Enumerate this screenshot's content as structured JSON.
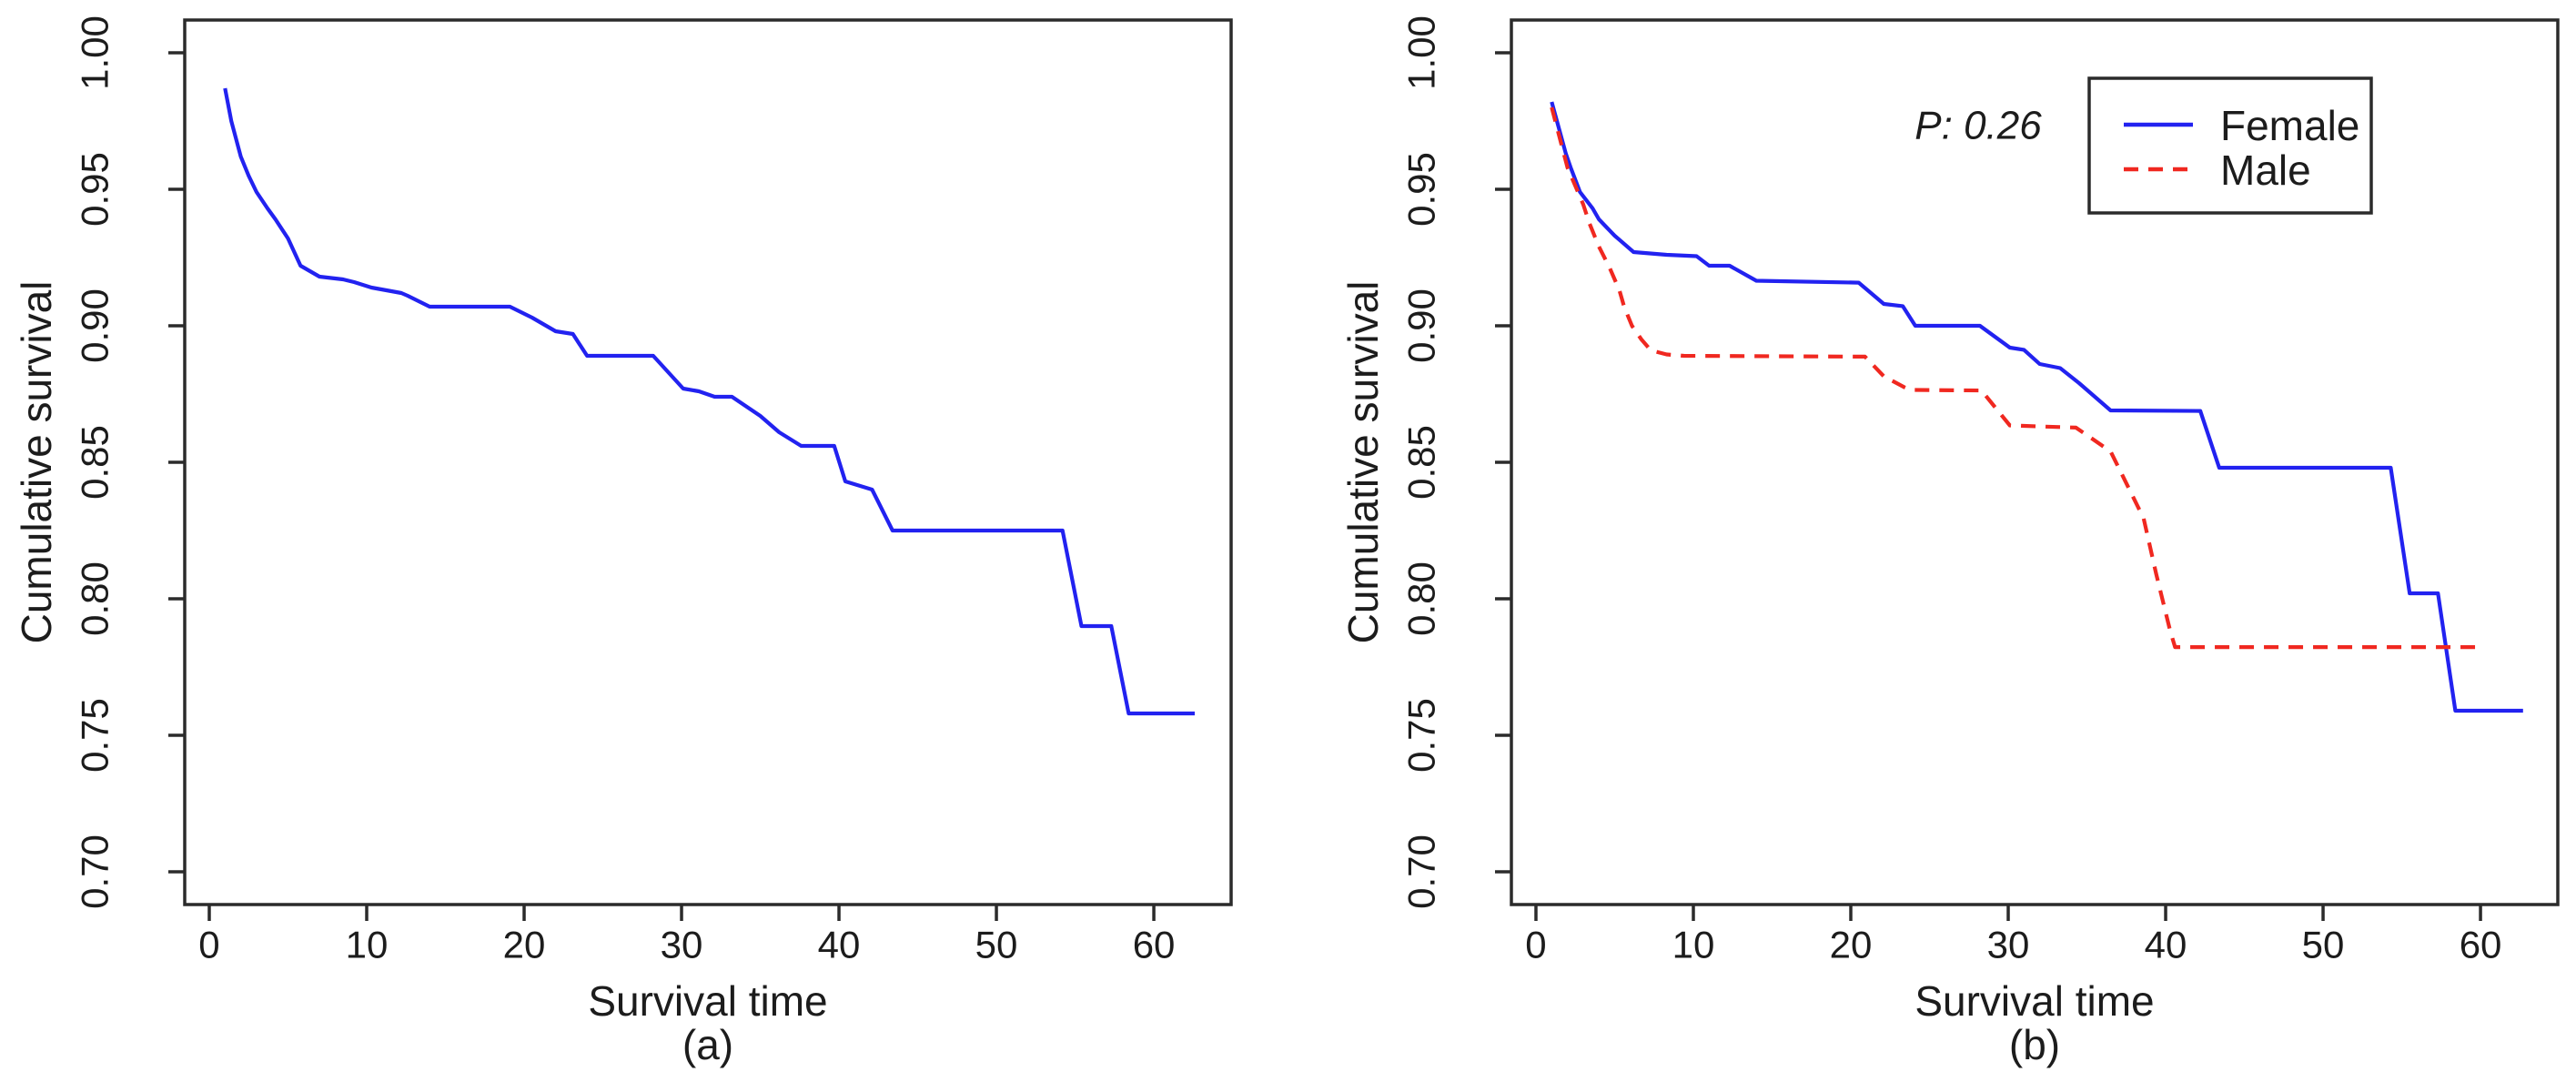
{
  "figure": {
    "background": "#ffffff",
    "axis_color": "#2b2b2b",
    "text_color": "#1c1c1c"
  },
  "chart_data": [
    {
      "type": "line",
      "panel": "a",
      "caption": "(a)",
      "xlabel": "Survival time",
      "ylabel": "Cumulative survival",
      "xlim": [
        -1.56,
        64.91
      ],
      "ylim": [
        0.688,
        1.012
      ],
      "grid": false,
      "xticks": {
        "values": [
          0,
          10,
          20,
          30,
          40,
          50,
          60
        ],
        "labels": [
          "0",
          "10",
          "20",
          "30",
          "40",
          "50",
          "60"
        ]
      },
      "yticks": {
        "values": [
          1.0,
          0.95,
          0.9,
          0.85,
          0.8,
          0.75,
          0.7
        ],
        "labels": [
          "1.00",
          "0.95",
          "0.90",
          "0.85",
          "0.80",
          "0.75",
          "0.70"
        ]
      },
      "series": [
        {
          "name": "",
          "color": "#2222f0",
          "style": "solid",
          "points": [
            [
              1,
              0.987
            ],
            [
              1.4,
              0.975
            ],
            [
              2,
              0.962
            ],
            [
              2.5,
              0.955
            ],
            [
              3,
              0.949
            ],
            [
              3.7,
              0.943
            ],
            [
              4.2,
              0.939
            ],
            [
              5,
              0.932
            ],
            [
              5.8,
              0.922
            ],
            [
              7,
              0.918
            ],
            [
              8.5,
              0.917
            ],
            [
              9.2,
              0.916
            ],
            [
              10.3,
              0.914
            ],
            [
              12.2,
              0.912
            ],
            [
              12.6,
              0.911
            ],
            [
              14,
              0.907
            ],
            [
              19.1,
              0.907
            ],
            [
              20.5,
              0.903
            ],
            [
              22,
              0.898
            ],
            [
              23.1,
              0.897
            ],
            [
              24,
              0.889
            ],
            [
              28.2,
              0.889
            ],
            [
              30.1,
              0.877
            ],
            [
              31.1,
              0.876
            ],
            [
              32.1,
              0.874
            ],
            [
              33.2,
              0.874
            ],
            [
              35,
              0.867
            ],
            [
              36.2,
              0.861
            ],
            [
              37.6,
              0.856
            ],
            [
              39.7,
              0.856
            ],
            [
              40.4,
              0.843
            ],
            [
              42.1,
              0.84
            ],
            [
              43.4,
              0.825
            ],
            [
              54.2,
              0.825
            ],
            [
              55.4,
              0.79
            ],
            [
              57.3,
              0.79
            ],
            [
              58.4,
              0.758
            ],
            [
              62.6,
              0.758
            ]
          ]
        }
      ]
    },
    {
      "type": "line",
      "panel": "b",
      "caption": "(b)",
      "xlabel": "Survival time",
      "ylabel": "Cumulative survival",
      "xlim": [
        -1.56,
        64.91
      ],
      "ylim": [
        0.688,
        1.012
      ],
      "grid": false,
      "annotation": "P: 0.26",
      "legend": {
        "position": "top-right-inside",
        "items": [
          "Female",
          "Male"
        ]
      },
      "xticks": {
        "values": [
          0,
          10,
          20,
          30,
          40,
          50,
          60
        ],
        "labels": [
          "0",
          "10",
          "20",
          "30",
          "40",
          "50",
          "60"
        ]
      },
      "yticks": {
        "values": [
          1.0,
          0.95,
          0.9,
          0.85,
          0.8,
          0.75,
          0.7
        ],
        "labels": [
          "1.00",
          "0.95",
          "0.90",
          "0.85",
          "0.80",
          "0.75",
          "0.70"
        ]
      },
      "series": [
        {
          "name": "Female",
          "color": "#2222f0",
          "style": "solid",
          "points": [
            [
              1,
              0.982
            ],
            [
              1.9,
              0.963
            ],
            [
              2.2,
              0.958
            ],
            [
              2.8,
              0.949
            ],
            [
              3.6,
              0.943
            ],
            [
              4,
              0.939
            ],
            [
              4.5,
              0.936
            ],
            [
              5,
              0.933
            ],
            [
              6.2,
              0.927
            ],
            [
              8.3,
              0.926
            ],
            [
              10.2,
              0.9255
            ],
            [
              11,
              0.922
            ],
            [
              12.3,
              0.922
            ],
            [
              14,
              0.9165
            ],
            [
              20.5,
              0.9158
            ],
            [
              22.1,
              0.908
            ],
            [
              23.3,
              0.9072
            ],
            [
              24.1,
              0.9
            ],
            [
              28.2,
              0.9
            ],
            [
              30.1,
              0.892
            ],
            [
              31,
              0.8912
            ],
            [
              32,
              0.886
            ],
            [
              33.3,
              0.8845
            ],
            [
              34.5,
              0.879
            ],
            [
              36.5,
              0.869
            ],
            [
              42.2,
              0.8688
            ],
            [
              43.4,
              0.848
            ],
            [
              54.3,
              0.848
            ],
            [
              55.5,
              0.802
            ],
            [
              57.3,
              0.802
            ],
            [
              58.4,
              0.759
            ],
            [
              62.7,
              0.759
            ]
          ]
        },
        {
          "name": "Male",
          "color": "#f02820",
          "style": "dashed",
          "points": [
            [
              1,
              0.98
            ],
            [
              2,
              0.958
            ],
            [
              3,
              0.9445
            ],
            [
              3.4,
              0.9375
            ],
            [
              4,
              0.929
            ],
            [
              4.7,
              0.921
            ],
            [
              5.3,
              0.913
            ],
            [
              5.6,
              0.907
            ],
            [
              6.1,
              0.9
            ],
            [
              6.7,
              0.895
            ],
            [
              7.3,
              0.891
            ],
            [
              8.3,
              0.8895
            ],
            [
              9.4,
              0.889
            ],
            [
              20.9,
              0.8887
            ],
            [
              22.1,
              0.8815
            ],
            [
              23.4,
              0.8775
            ],
            [
              23.8,
              0.8765
            ],
            [
              28.3,
              0.8763
            ],
            [
              30.1,
              0.8635
            ],
            [
              34.3,
              0.8627
            ],
            [
              36.5,
              0.854
            ],
            [
              38.6,
              0.8295
            ],
            [
              39.4,
              0.809
            ],
            [
              40.3,
              0.788
            ],
            [
              40.6,
              0.7823
            ],
            [
              60.2,
              0.7823
            ]
          ]
        }
      ]
    }
  ]
}
